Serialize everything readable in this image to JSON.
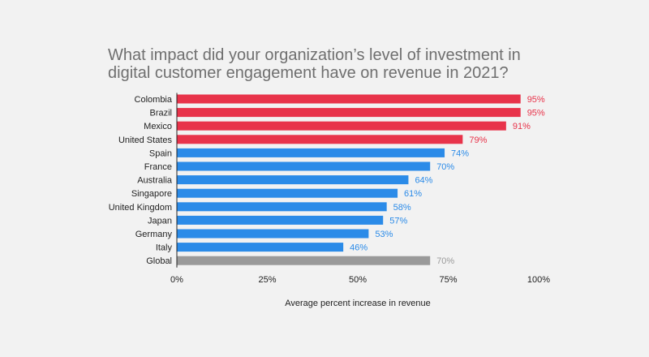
{
  "chart_data": {
    "type": "bar",
    "orientation": "horizontal",
    "title_lines": [
      "What impact did your organization’s level of investment in",
      "digital customer engagement have on revenue in 2021?"
    ],
    "xlabel": "Average percent increase in revenue",
    "ylabel": "",
    "xlim": [
      0,
      100
    ],
    "x_ticks": [
      0,
      25,
      50,
      75,
      100
    ],
    "x_tick_labels": [
      "0%",
      "25%",
      "50%",
      "75%",
      "100%"
    ],
    "grid": false,
    "legend": "none",
    "bars": [
      {
        "label": "Colombia",
        "value": 95,
        "value_label": "95%",
        "group": "high"
      },
      {
        "label": "Brazil",
        "value": 95,
        "value_label": "95%",
        "group": "high"
      },
      {
        "label": "Mexico",
        "value": 91,
        "value_label": "91%",
        "group": "high"
      },
      {
        "label": "United States",
        "value": 79,
        "value_label": "79%",
        "group": "high"
      },
      {
        "label": "Spain",
        "value": 74,
        "value_label": "74%",
        "group": "mid"
      },
      {
        "label": "France",
        "value": 70,
        "value_label": "70%",
        "group": "mid"
      },
      {
        "label": "Australia",
        "value": 64,
        "value_label": "64%",
        "group": "mid"
      },
      {
        "label": "Singapore",
        "value": 61,
        "value_label": "61%",
        "group": "mid"
      },
      {
        "label": "United Kingdom",
        "value": 58,
        "value_label": "58%",
        "group": "mid"
      },
      {
        "label": "Japan",
        "value": 57,
        "value_label": "57%",
        "group": "mid"
      },
      {
        "label": "Germany",
        "value": 53,
        "value_label": "53%",
        "group": "mid"
      },
      {
        "label": "Italy",
        "value": 46,
        "value_label": "46%",
        "group": "mid"
      },
      {
        "label": "Global",
        "value": 70,
        "value_label": "70%",
        "group": "global"
      }
    ],
    "colors": {
      "high": "#e8334a",
      "mid": "#2b8be8",
      "global": "#9a9a9a",
      "high_label": "#e8334a",
      "mid_label": "#2b8be8",
      "global_label": "#9a9a9a",
      "axis": "#222222"
    }
  }
}
